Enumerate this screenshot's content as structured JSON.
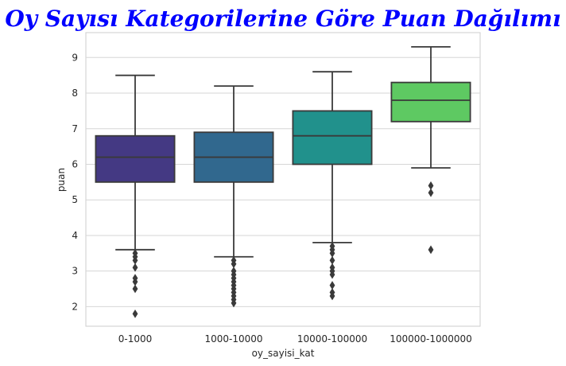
{
  "chart_data": {
    "type": "box",
    "title": "Oy Sayısı Kategorilerine Göre Puan Dağılımı",
    "title_color": "#0000ff",
    "xlabel": "oy_sayisi_kat",
    "ylabel": "puan",
    "ylim": [
      1.45,
      9.7
    ],
    "yticks": [
      2,
      3,
      4,
      5,
      6,
      7,
      8,
      9
    ],
    "grid": true,
    "categories": [
      "0-1000",
      "1000-10000",
      "10000-100000",
      "100000-1000000"
    ],
    "boxes": [
      {
        "category": "0-1000",
        "color": "#443983",
        "whisker_low": 3.6,
        "q1": 5.5,
        "median": 6.2,
        "q3": 6.8,
        "whisker_high": 8.5,
        "outliers": [
          3.5,
          3.4,
          3.3,
          3.1,
          2.8,
          2.7,
          2.5,
          1.8
        ]
      },
      {
        "category": "1000-10000",
        "color": "#31688e",
        "whisker_low": 3.4,
        "q1": 5.5,
        "median": 6.2,
        "q3": 6.9,
        "whisker_high": 8.2,
        "outliers": [
          3.3,
          3.2,
          3.0,
          2.9,
          2.8,
          2.7,
          2.6,
          2.5,
          2.4,
          2.3,
          2.2,
          2.1
        ]
      },
      {
        "category": "10000-100000",
        "color": "#21918c",
        "whisker_low": 3.8,
        "q1": 6.0,
        "median": 6.8,
        "q3": 7.5,
        "whisker_high": 8.6,
        "outliers": [
          3.7,
          3.6,
          3.5,
          3.3,
          3.1,
          3.0,
          2.9,
          2.6,
          2.4,
          2.3
        ]
      },
      {
        "category": "100000-1000000",
        "color": "#5ec962",
        "whisker_low": 5.9,
        "q1": 7.2,
        "median": 7.8,
        "q3": 8.3,
        "whisker_high": 9.3,
        "outliers": [
          5.4,
          5.2,
          3.6
        ]
      }
    ]
  }
}
